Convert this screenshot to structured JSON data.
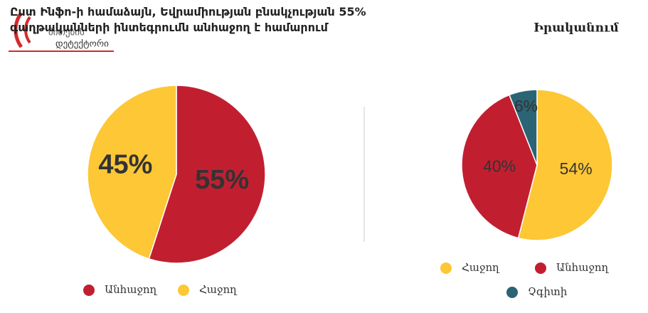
{
  "logo": {
    "line1": "მითების",
    "line2": "დეტექტორი"
  },
  "chart_data": [
    {
      "type": "pie",
      "title": "Ըստ Ինֆո-ի համաձայն, Եվրամիության բնակչության 55% գաղթականների ինտեգրումն անհաջող է համարում",
      "categories": [
        "Անհաջող",
        "Հաջող"
      ],
      "values": [
        55,
        45
      ],
      "value_labels": [
        "55%",
        "45%"
      ],
      "colors": [
        "#c11f30",
        "#fdc735"
      ]
    },
    {
      "type": "pie",
      "title": "Իրականում",
      "categories": [
        "Հաջող",
        "Անհաջող",
        "Չգիտի"
      ],
      "values": [
        54,
        40,
        6
      ],
      "value_labels": [
        "54%",
        "40%",
        "6%"
      ],
      "colors": [
        "#fdc735",
        "#c11f30",
        "#2a6475"
      ]
    }
  ]
}
